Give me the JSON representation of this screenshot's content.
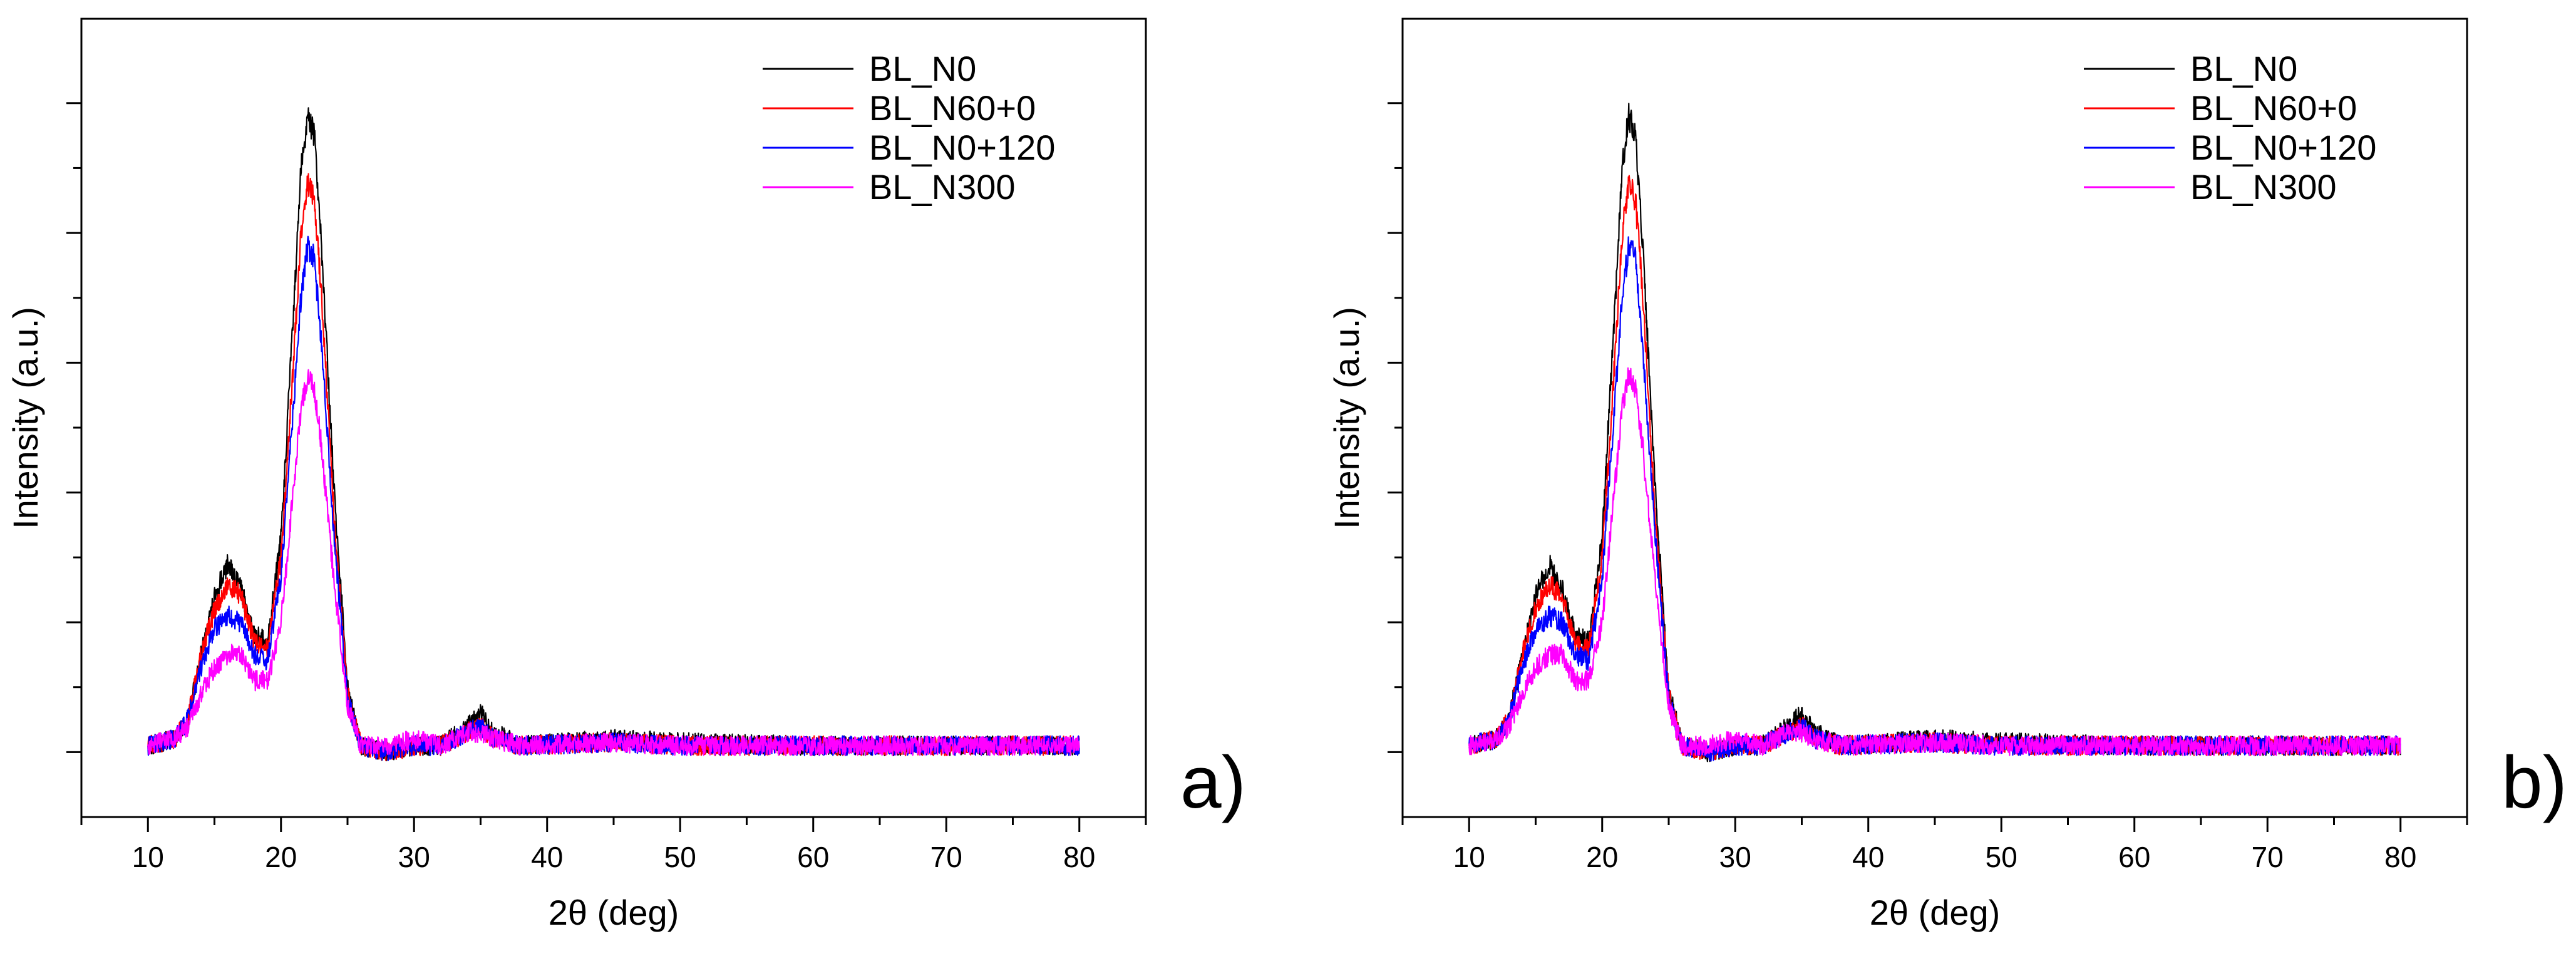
{
  "chart_data": [
    {
      "type": "line",
      "panel_label": "a)",
      "title": "",
      "xlabel": "2θ (deg)",
      "ylabel": "Intensity (a.u.)",
      "xlim": [
        5,
        85
      ],
      "ylim": [
        -0.1,
        1.13
      ],
      "xticks": [
        10,
        20,
        30,
        40,
        50,
        60,
        70,
        80
      ],
      "y_tick_labels": "none",
      "legend_position": "top-right",
      "series": [
        {
          "name": "BL_N0",
          "color": "#000000",
          "points": [
            [
              10,
              0.01
            ],
            [
              12,
              0.02
            ],
            [
              13,
              0.05
            ],
            [
              14,
              0.15
            ],
            [
              15,
              0.24
            ],
            [
              16,
              0.29
            ],
            [
              17,
              0.25
            ],
            [
              18,
              0.18
            ],
            [
              19,
              0.17
            ],
            [
              20,
              0.33
            ],
            [
              21,
              0.7
            ],
            [
              21.5,
              0.9
            ],
            [
              22,
              0.98
            ],
            [
              22.5,
              0.95
            ],
            [
              23,
              0.8
            ],
            [
              24,
              0.4
            ],
            [
              25,
              0.1
            ],
            [
              26,
              0.01
            ],
            [
              28,
              0.0
            ],
            [
              30,
              0.01
            ],
            [
              32,
              0.01
            ],
            [
              34,
              0.04
            ],
            [
              35,
              0.06
            ],
            [
              36,
              0.03
            ],
            [
              38,
              0.01
            ],
            [
              45,
              0.02
            ],
            [
              50,
              0.015
            ],
            [
              60,
              0.01
            ],
            [
              70,
              0.01
            ],
            [
              80,
              0.01
            ]
          ]
        },
        {
          "name": "BL_N60+0",
          "color": "#ff0000",
          "points": [
            [
              10,
              0.01
            ],
            [
              12,
              0.02
            ],
            [
              13,
              0.05
            ],
            [
              14,
              0.15
            ],
            [
              15,
              0.22
            ],
            [
              16,
              0.26
            ],
            [
              17,
              0.24
            ],
            [
              18,
              0.17
            ],
            [
              19,
              0.16
            ],
            [
              20,
              0.3
            ],
            [
              21,
              0.62
            ],
            [
              21.5,
              0.8
            ],
            [
              22,
              0.88
            ],
            [
              22.5,
              0.85
            ],
            [
              23,
              0.72
            ],
            [
              24,
              0.36
            ],
            [
              25,
              0.09
            ],
            [
              26,
              0.01
            ],
            [
              28,
              0.0
            ],
            [
              30,
              0.01
            ],
            [
              32,
              0.01
            ],
            [
              34,
              0.03
            ],
            [
              35,
              0.04
            ],
            [
              36,
              0.02
            ],
            [
              38,
              0.01
            ],
            [
              45,
              0.015
            ],
            [
              50,
              0.01
            ],
            [
              60,
              0.01
            ],
            [
              70,
              0.01
            ],
            [
              80,
              0.01
            ]
          ]
        },
        {
          "name": "BL_N0+120",
          "color": "#0000ff",
          "points": [
            [
              10,
              0.01
            ],
            [
              12,
              0.02
            ],
            [
              13,
              0.05
            ],
            [
              14,
              0.13
            ],
            [
              15,
              0.19
            ],
            [
              16,
              0.21
            ],
            [
              17,
              0.2
            ],
            [
              18,
              0.15
            ],
            [
              19,
              0.14
            ],
            [
              20,
              0.27
            ],
            [
              21,
              0.55
            ],
            [
              21.5,
              0.7
            ],
            [
              22,
              0.78
            ],
            [
              22.5,
              0.76
            ],
            [
              23,
              0.64
            ],
            [
              24,
              0.33
            ],
            [
              25,
              0.08
            ],
            [
              26,
              0.01
            ],
            [
              28,
              0.0
            ],
            [
              30,
              0.01
            ],
            [
              32,
              0.01
            ],
            [
              34,
              0.03
            ],
            [
              35,
              0.04
            ],
            [
              36,
              0.02
            ],
            [
              38,
              0.01
            ],
            [
              45,
              0.015
            ],
            [
              50,
              0.01
            ],
            [
              60,
              0.01
            ],
            [
              70,
              0.01
            ],
            [
              80,
              0.01
            ]
          ]
        },
        {
          "name": "BL_N300",
          "color": "#ff00ff",
          "points": [
            [
              10,
              0.01
            ],
            [
              12,
              0.02
            ],
            [
              13,
              0.04
            ],
            [
              14,
              0.09
            ],
            [
              15,
              0.13
            ],
            [
              16,
              0.15
            ],
            [
              17,
              0.15
            ],
            [
              18,
              0.11
            ],
            [
              19,
              0.11
            ],
            [
              20,
              0.2
            ],
            [
              21,
              0.42
            ],
            [
              21.5,
              0.53
            ],
            [
              22,
              0.58
            ],
            [
              22.5,
              0.56
            ],
            [
              23,
              0.48
            ],
            [
              24,
              0.26
            ],
            [
              25,
              0.07
            ],
            [
              26,
              0.01
            ],
            [
              28,
              0.01
            ],
            [
              30,
              0.02
            ],
            [
              32,
              0.01
            ],
            [
              34,
              0.03
            ],
            [
              35,
              0.03
            ],
            [
              36,
              0.02
            ],
            [
              38,
              0.01
            ],
            [
              45,
              0.015
            ],
            [
              50,
              0.01
            ],
            [
              60,
              0.01
            ],
            [
              70,
              0.01
            ],
            [
              80,
              0.01
            ]
          ]
        }
      ]
    },
    {
      "type": "line",
      "panel_label": "b)",
      "title": "",
      "xlabel": "2θ (deg)",
      "ylabel": "Intensity (a.u.)",
      "xlim": [
        5,
        85
      ],
      "ylim": [
        -0.1,
        1.13
      ],
      "xticks": [
        10,
        20,
        30,
        40,
        50,
        60,
        70,
        80
      ],
      "y_tick_labels": "none",
      "legend_position": "top-right",
      "series": [
        {
          "name": "BL_N0",
          "color": "#000000",
          "points": [
            [
              10,
              0.01
            ],
            [
              12,
              0.02
            ],
            [
              13,
              0.05
            ],
            [
              14,
              0.15
            ],
            [
              15,
              0.24
            ],
            [
              16,
              0.29
            ],
            [
              17,
              0.25
            ],
            [
              18,
              0.18
            ],
            [
              19,
              0.17
            ],
            [
              20,
              0.33
            ],
            [
              21,
              0.7
            ],
            [
              21.5,
              0.9
            ],
            [
              22,
              0.98
            ],
            [
              22.5,
              0.95
            ],
            [
              23,
              0.8
            ],
            [
              24,
              0.4
            ],
            [
              25,
              0.1
            ],
            [
              26,
              0.01
            ],
            [
              28,
              0.0
            ],
            [
              30,
              0.01
            ],
            [
              32,
              0.01
            ],
            [
              34,
              0.04
            ],
            [
              35,
              0.06
            ],
            [
              36,
              0.03
            ],
            [
              38,
              0.01
            ],
            [
              45,
              0.02
            ],
            [
              50,
              0.015
            ],
            [
              60,
              0.01
            ],
            [
              70,
              0.01
            ],
            [
              80,
              0.01
            ]
          ]
        },
        {
          "name": "BL_N60+0",
          "color": "#ff0000",
          "points": [
            [
              10,
              0.01
            ],
            [
              12,
              0.02
            ],
            [
              13,
              0.05
            ],
            [
              14,
              0.15
            ],
            [
              15,
              0.22
            ],
            [
              16,
              0.26
            ],
            [
              17,
              0.24
            ],
            [
              18,
              0.17
            ],
            [
              19,
              0.16
            ],
            [
              20,
              0.3
            ],
            [
              21,
              0.62
            ],
            [
              21.5,
              0.8
            ],
            [
              22,
              0.88
            ],
            [
              22.5,
              0.85
            ],
            [
              23,
              0.72
            ],
            [
              24,
              0.36
            ],
            [
              25,
              0.09
            ],
            [
              26,
              0.01
            ],
            [
              28,
              0.0
            ],
            [
              30,
              0.01
            ],
            [
              32,
              0.01
            ],
            [
              34,
              0.03
            ],
            [
              35,
              0.04
            ],
            [
              36,
              0.02
            ],
            [
              38,
              0.01
            ],
            [
              45,
              0.015
            ],
            [
              50,
              0.01
            ],
            [
              60,
              0.01
            ],
            [
              70,
              0.01
            ],
            [
              80,
              0.01
            ]
          ]
        },
        {
          "name": "BL_N0+120",
          "color": "#0000ff",
          "points": [
            [
              10,
              0.01
            ],
            [
              12,
              0.02
            ],
            [
              13,
              0.05
            ],
            [
              14,
              0.13
            ],
            [
              15,
              0.19
            ],
            [
              16,
              0.21
            ],
            [
              17,
              0.2
            ],
            [
              18,
              0.15
            ],
            [
              19,
              0.14
            ],
            [
              20,
              0.27
            ],
            [
              21,
              0.55
            ],
            [
              21.5,
              0.7
            ],
            [
              22,
              0.78
            ],
            [
              22.5,
              0.76
            ],
            [
              23,
              0.64
            ],
            [
              24,
              0.33
            ],
            [
              25,
              0.08
            ],
            [
              26,
              0.01
            ],
            [
              28,
              0.0
            ],
            [
              30,
              0.01
            ],
            [
              32,
              0.01
            ],
            [
              34,
              0.03
            ],
            [
              35,
              0.04
            ],
            [
              36,
              0.02
            ],
            [
              38,
              0.01
            ],
            [
              45,
              0.015
            ],
            [
              50,
              0.01
            ],
            [
              60,
              0.01
            ],
            [
              70,
              0.01
            ],
            [
              80,
              0.01
            ]
          ]
        },
        {
          "name": "BL_N300",
          "color": "#ff00ff",
          "points": [
            [
              10,
              0.01
            ],
            [
              12,
              0.02
            ],
            [
              13,
              0.04
            ],
            [
              14,
              0.09
            ],
            [
              15,
              0.13
            ],
            [
              16,
              0.15
            ],
            [
              17,
              0.15
            ],
            [
              18,
              0.11
            ],
            [
              19,
              0.11
            ],
            [
              20,
              0.2
            ],
            [
              21,
              0.42
            ],
            [
              21.5,
              0.53
            ],
            [
              22,
              0.58
            ],
            [
              22.5,
              0.56
            ],
            [
              23,
              0.48
            ],
            [
              24,
              0.26
            ],
            [
              25,
              0.07
            ],
            [
              26,
              0.01
            ],
            [
              28,
              0.01
            ],
            [
              30,
              0.02
            ],
            [
              32,
              0.01
            ],
            [
              34,
              0.03
            ],
            [
              35,
              0.03
            ],
            [
              36,
              0.02
            ],
            [
              38,
              0.01
            ],
            [
              45,
              0.015
            ],
            [
              50,
              0.01
            ],
            [
              60,
              0.01
            ],
            [
              70,
              0.01
            ],
            [
              80,
              0.01
            ]
          ]
        }
      ]
    }
  ]
}
